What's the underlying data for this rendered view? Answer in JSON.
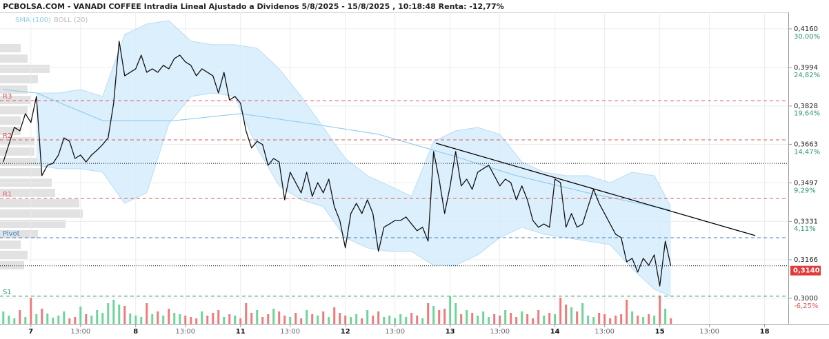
{
  "chart_data": {
    "type": "line",
    "title": "PCBOLSA.COM - VANADI COFFEE Intradia Lineal Ajustado a Dividenos 5/8/2025 - 15/8/2025 , 10:18:48 Renta: -12,77%",
    "xlim": [
      -0.6,
      142.3
    ],
    "xticks": [
      {
        "value": 5,
        "label": "7"
      },
      {
        "value": 14,
        "label": "13:00"
      },
      {
        "value": 24,
        "label": "8"
      },
      {
        "value": 33,
        "label": "13:00"
      },
      {
        "value": 43,
        "label": "11"
      },
      {
        "value": 52,
        "label": "13:00"
      },
      {
        "value": 62,
        "label": "12"
      },
      {
        "value": 71,
        "label": "13:00"
      },
      {
        "value": 81,
        "label": "13"
      },
      {
        "value": 90,
        "label": "13:00"
      },
      {
        "value": 100,
        "label": "14"
      },
      {
        "value": 109,
        "label": "13:00"
      },
      {
        "value": 119,
        "label": "15"
      },
      {
        "value": 128,
        "label": "13:00"
      },
      {
        "value": 138,
        "label": "18"
      }
    ],
    "ylim": [
      0.289,
      0.4231
    ],
    "yticks": [
      {
        "value": 0.3,
        "label": "0,3000"
      },
      {
        "value": 0.3166,
        "label": "0,3166"
      },
      {
        "value": 0.3331,
        "label": "0,3331"
      },
      {
        "value": 0.3497,
        "label": "0,3497"
      },
      {
        "value": 0.3663,
        "label": "0,3663"
      },
      {
        "value": 0.3828,
        "label": "0,3828"
      },
      {
        "value": 0.3994,
        "label": "0,3994"
      },
      {
        "value": 0.416,
        "label": "0,4160"
      }
    ],
    "y2lim": [
      -9.69,
      32.22
    ],
    "y2ticks": [
      {
        "value": -6.25,
        "label": "-6,25%"
      },
      {
        "value": 4.11,
        "label": "4,11%"
      },
      {
        "value": 9.29,
        "label": "9,29%"
      },
      {
        "value": 14.47,
        "label": "14,47%"
      },
      {
        "value": 19.64,
        "label": "19,64%"
      },
      {
        "value": 24.82,
        "label": "24,82%"
      },
      {
        "value": 30,
        "label": "30,00%"
      }
    ],
    "grid": true,
    "price": {
      "color": "#111111",
      "values": [
        0.3587,
        0.3662,
        0.3736,
        0.3721,
        0.3795,
        0.3757,
        0.3869,
        0.3528,
        0.3573,
        0.3581,
        0.3617,
        0.3691,
        0.3676,
        0.3602,
        0.3617,
        0.3587,
        0.3617,
        0.3638,
        0.3662,
        0.3691,
        0.384,
        0.4107,
        0.3958,
        0.3973,
        0.3988,
        0.4047,
        0.3973,
        0.3988,
        0.3973,
        0.4003,
        0.3988,
        0.4032,
        0.4047,
        0.4018,
        0.4003,
        0.3958,
        0.3988,
        0.3973,
        0.3958,
        0.3884,
        0.3973,
        0.3854,
        0.3869,
        0.384,
        0.3721,
        0.3647,
        0.3676,
        0.3662,
        0.3573,
        0.3602,
        0.3587,
        0.3424,
        0.3543,
        0.3498,
        0.3454,
        0.3543,
        0.3439,
        0.3498,
        0.3454,
        0.3513,
        0.3395,
        0.3335,
        0.3217,
        0.3365,
        0.3409,
        0.3365,
        0.3424,
        0.3365,
        0.3202,
        0.3306,
        0.332,
        0.3335,
        0.3335,
        0.335,
        0.332,
        0.3291,
        0.3306,
        0.3246,
        0.3632,
        0.3513,
        0.3365,
        0.3484,
        0.3632,
        0.3484,
        0.3513,
        0.3469,
        0.3543,
        0.3558,
        0.3573,
        0.3528,
        0.3484,
        0.3513,
        0.3498,
        0.3424,
        0.3484,
        0.3424,
        0.3335,
        0.3306,
        0.332,
        0.3306,
        0.3513,
        0.3498,
        0.3306,
        0.3365,
        0.3306,
        0.332,
        0.3395,
        0.3469,
        0.3409,
        0.3365,
        0.332,
        0.3276,
        0.3261,
        0.3157,
        0.3172,
        0.3113,
        0.3172,
        0.3142,
        0.3187,
        0.3053,
        0.3246,
        0.314
      ]
    },
    "last_price": {
      "value": 0.314,
      "label": "0,3140",
      "color": "#e23b3b"
    },
    "reference_line": 0.3581,
    "volume": {
      "up_color": "#6fd39a",
      "down_color": "#f07a7a",
      "lim": [
        0,
        45
      ],
      "values": [
        18,
        12,
        8,
        20,
        10,
        38,
        14,
        22,
        15,
        9,
        12,
        18,
        8,
        10,
        25,
        14,
        12,
        20,
        16,
        30,
        35,
        28,
        26,
        15,
        12,
        10,
        30,
        14,
        18,
        12,
        22,
        16,
        14,
        12,
        10,
        8,
        18,
        12,
        16,
        20,
        10,
        14,
        12,
        8,
        30,
        16,
        20,
        10,
        14,
        22,
        18,
        12,
        10,
        16,
        8,
        20,
        14,
        12,
        18,
        10,
        24,
        16,
        12,
        10,
        14,
        8,
        20,
        12,
        18,
        10,
        12,
        8,
        14,
        10,
        16,
        12,
        8,
        30,
        26,
        20,
        22,
        40,
        30,
        14,
        20,
        16,
        12,
        18,
        10,
        14,
        12,
        20,
        16,
        10,
        18,
        14,
        8,
        20,
        12,
        16,
        14,
        38,
        28,
        24,
        18,
        30,
        12,
        10,
        16,
        14,
        8,
        12,
        14,
        35,
        18,
        12,
        10,
        14,
        12,
        40,
        22,
        8
      ]
    },
    "sma": {
      "name": "SMA (100)",
      "color": "#8fcdee",
      "x": [
        0,
        6,
        18,
        31,
        43,
        56,
        68,
        81,
        93,
        106,
        118,
        121
      ],
      "values": [
        0.3899,
        0.3884,
        0.3765,
        0.3765,
        0.3795,
        0.3751,
        0.3706,
        0.3617,
        0.3528,
        0.3454,
        0.3395,
        0.338
      ]
    },
    "boll": {
      "name": "BOLL (20)",
      "color": "#bbbbbb",
      "fill": "#d6ecfb",
      "x": [
        6,
        10,
        14,
        18,
        22,
        26,
        30,
        34,
        38,
        42,
        46,
        50,
        54,
        58,
        62,
        66,
        70,
        74,
        78,
        82,
        86,
        90,
        94,
        98,
        102,
        106,
        110,
        114,
        118,
        121
      ],
      "upper": [
        0.3884,
        0.3884,
        0.3899,
        0.3869,
        0.4136,
        0.4181,
        0.4196,
        0.4107,
        0.4092,
        0.4092,
        0.4077,
        0.3988,
        0.3869,
        0.3736,
        0.3602,
        0.3528,
        0.3484,
        0.3439,
        0.3676,
        0.3721,
        0.3736,
        0.3706,
        0.3587,
        0.3543,
        0.3528,
        0.3528,
        0.3498,
        0.3543,
        0.3528,
        0.3395
      ],
      "lower": [
        0.3573,
        0.3558,
        0.3558,
        0.3543,
        0.3409,
        0.3454,
        0.3751,
        0.3869,
        0.3884,
        0.3869,
        0.3647,
        0.3484,
        0.3424,
        0.3395,
        0.3261,
        0.3217,
        0.3202,
        0.3202,
        0.3142,
        0.3142,
        0.3187,
        0.3261,
        0.3306,
        0.3276,
        0.3261,
        0.3246,
        0.3231,
        0.3128,
        0.3039,
        0.3009
      ]
    },
    "levels": [
      {
        "label": "R3",
        "value": 0.3851,
        "color": "#e05555"
      },
      {
        "label": "R2",
        "value": 0.3682,
        "color": "#e05555"
      },
      {
        "label": "R1",
        "value": 0.343,
        "color": "#e05555"
      },
      {
        "label": "Pivot",
        "value": 0.3261,
        "color": "#3a7fc4"
      },
      {
        "label": "S1",
        "value": 0.3009,
        "color": "#2a9a6a"
      }
    ],
    "trendline": {
      "color": "#000000",
      "x": [
        78.4,
        136.3
      ],
      "values": [
        0.3668,
        0.327
      ]
    },
    "volume_profile": {
      "color": "#e2e2e2",
      "lim": [
        0,
        120
      ],
      "levels": [
        0.4077,
        0.4032,
        0.3988,
        0.3943,
        0.3899,
        0.3854,
        0.381,
        0.3765,
        0.3721,
        0.3676,
        0.3632,
        0.3587,
        0.3543,
        0.3498,
        0.3454,
        0.3409,
        0.3365,
        0.332,
        0.3276,
        0.3231,
        0.3187,
        0.3142
      ],
      "values": [
        30,
        40,
        72,
        55,
        40,
        45,
        40,
        30,
        30,
        50,
        50,
        55,
        60,
        75,
        80,
        115,
        120,
        95,
        55,
        30,
        40,
        35
      ]
    }
  }
}
